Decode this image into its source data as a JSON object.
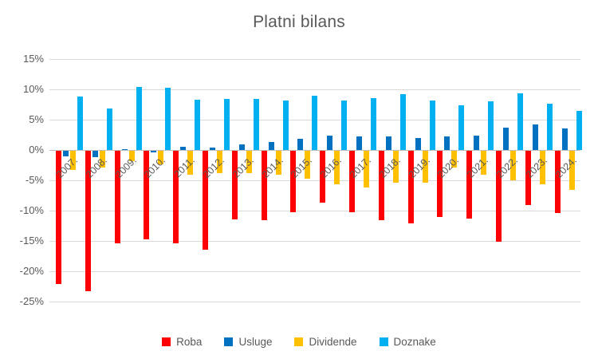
{
  "chart_data": {
    "type": "bar",
    "title": "Platni bilans",
    "categories": [
      "2007.",
      "2008.",
      "2009.",
      "2010.",
      "2011.",
      "2012.",
      "2013.",
      "2014.",
      "2015.",
      "2016.",
      "2017.",
      "2018.",
      "2019.",
      "2020.",
      "2021.",
      "2022.",
      "2023.",
      "2024."
    ],
    "series": [
      {
        "name": "Roba",
        "color": "#FF0000",
        "values": [
          -22.0,
          -23.1,
          -15.3,
          -14.6,
          -15.2,
          -16.3,
          -11.3,
          -11.5,
          -10.1,
          -8.6,
          -10.1,
          -11.5,
          -12.0,
          -10.9,
          -11.2,
          -15.0,
          -9.0,
          -10.2
        ]
      },
      {
        "name": "Usluge",
        "color": "#0070C0",
        "values": [
          -0.9,
          -1.0,
          0.2,
          -0.3,
          0.5,
          0.4,
          0.9,
          1.3,
          1.9,
          2.4,
          2.2,
          2.2,
          2.0,
          2.2,
          2.4,
          3.7,
          4.2,
          3.5
        ]
      },
      {
        "name": "Dividende",
        "color": "#FFC000",
        "values": [
          -3.1,
          -2.8,
          -1.7,
          -2.2,
          -4.0,
          -3.7,
          -3.7,
          -3.9,
          -4.6,
          -5.5,
          -6.1,
          -5.2,
          -5.2,
          -2.8,
          -3.9,
          -4.9,
          -5.5,
          -6.5
        ]
      },
      {
        "name": "Doznake",
        "color": "#00B0F0",
        "values": [
          8.8,
          6.9,
          10.4,
          10.3,
          8.3,
          8.4,
          8.4,
          8.1,
          8.9,
          8.2,
          8.6,
          9.2,
          8.2,
          7.4,
          8.0,
          9.4,
          7.6,
          6.5
        ]
      }
    ],
    "ylim": [
      -25,
      15
    ],
    "ytick_step": 5,
    "yticks": [
      "15%",
      "10%",
      "5%",
      "0%",
      "-5%",
      "-10%",
      "-15%",
      "-20%",
      "-25%"
    ],
    "ytick_values": [
      15,
      10,
      5,
      0,
      -5,
      -10,
      -15,
      -20,
      -25
    ],
    "grid": true,
    "legend_position": "bottom",
    "xlabel": "",
    "ylabel": ""
  },
  "colors": {
    "text": "#595959",
    "gridline": "#D9D9D9",
    "zero_line": "#BFBFBF",
    "background": "#FFFFFF"
  }
}
